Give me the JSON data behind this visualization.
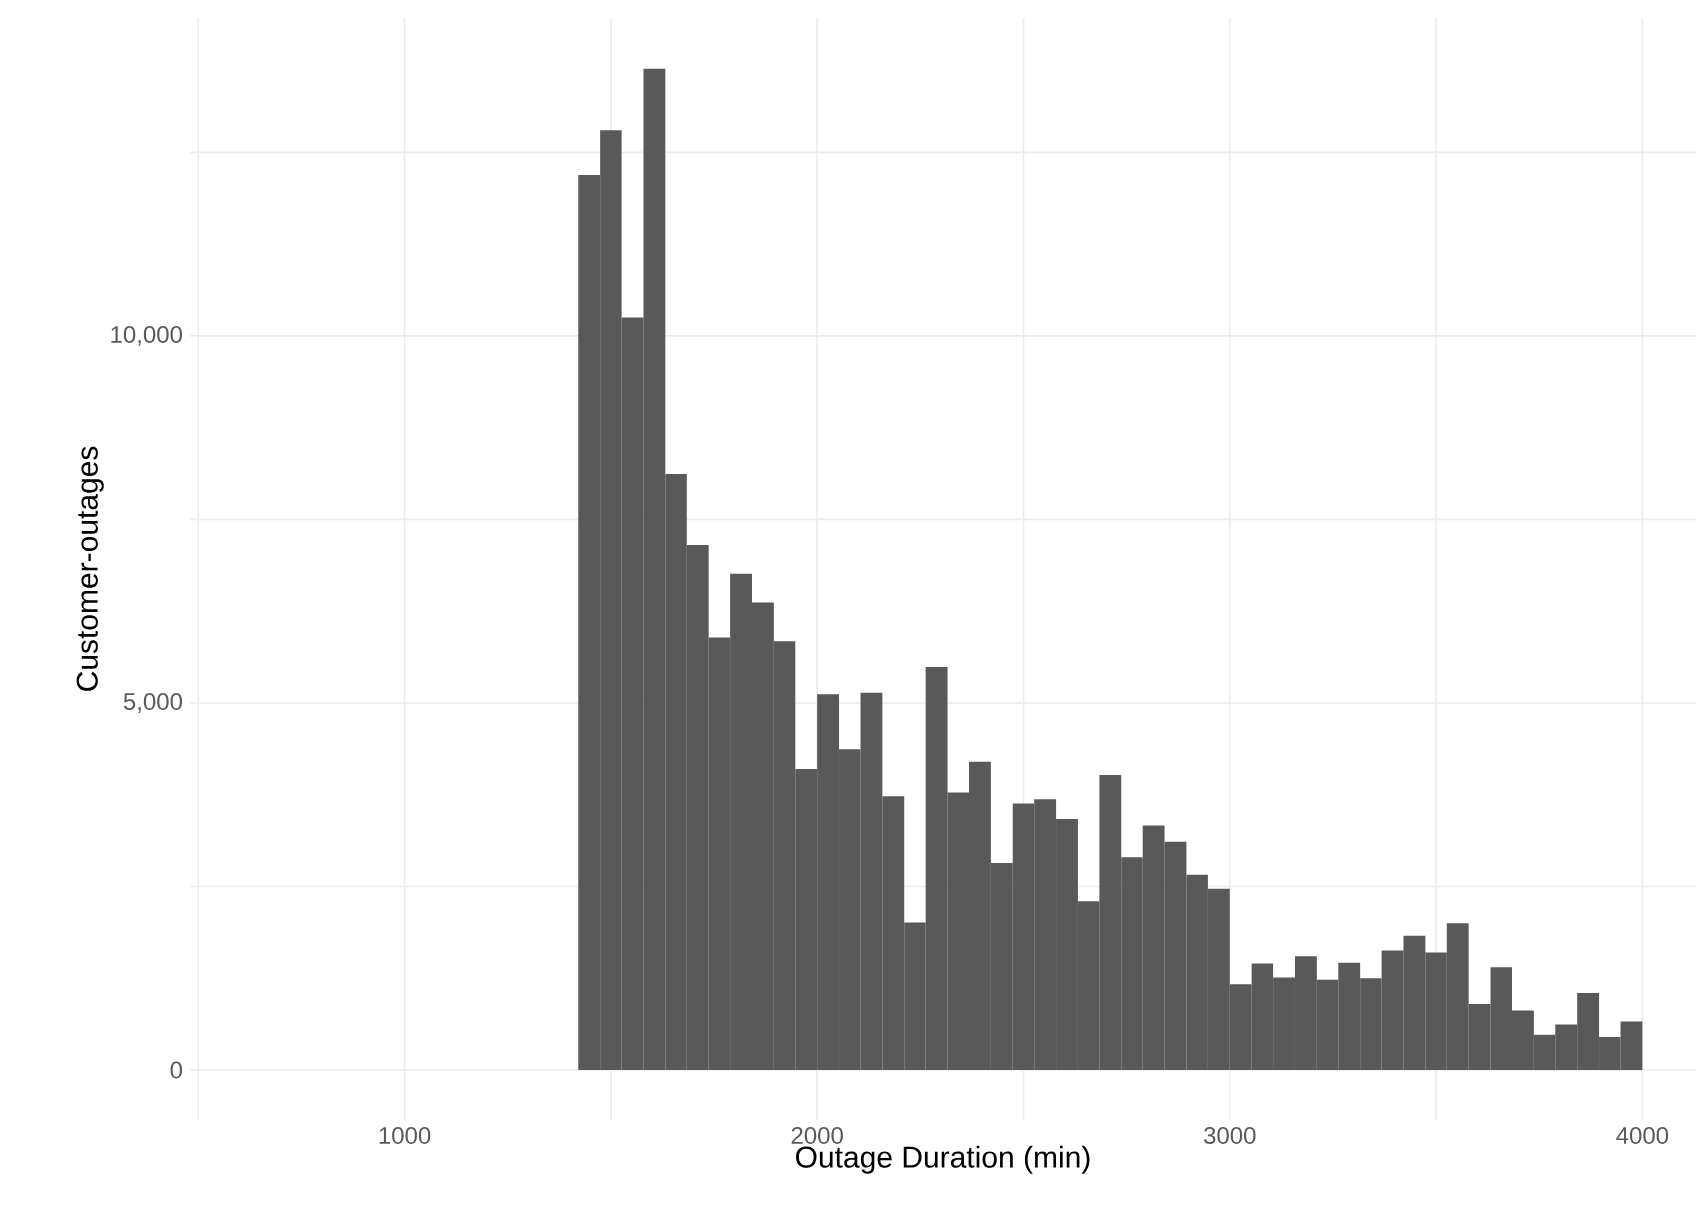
{
  "chart_data": {
    "type": "histogram",
    "xlabel": "Outage Duration (min)",
    "ylabel": "Customer-outages",
    "color": "#595959",
    "grid": true,
    "bins": [
      1421,
      1474,
      1526,
      1579,
      1632,
      1684,
      1737,
      1789,
      1842,
      1895,
      1947,
      2000,
      2053,
      2105,
      2158,
      2211,
      2263,
      2316,
      2368,
      2421,
      2474,
      2526,
      2579,
      2632,
      2684,
      2737,
      2789,
      2842,
      2895,
      2947,
      3000,
      3053,
      3105,
      3158,
      3211,
      3263,
      3316,
      3368,
      3421,
      3474,
      3526,
      3579,
      3632,
      3684,
      3737,
      3789,
      3842,
      3895,
      3947,
      4000
    ],
    "values": [
      12190,
      12800,
      10250,
      13640,
      8120,
      7150,
      5890,
      6760,
      6370,
      5840,
      4100,
      5120,
      4370,
      5140,
      3730,
      2010,
      5490,
      3780,
      4200,
      2820,
      3630,
      3690,
      3420,
      2300,
      4020,
      2900,
      3330,
      3110,
      2660,
      2470,
      1170,
      1450,
      1260,
      1550,
      1230,
      1460,
      1250,
      1630,
      1830,
      1600,
      2000,
      900,
      1400,
      810,
      480,
      620,
      1050,
      450,
      660
    ],
    "xlim": [
      480,
      4130
    ],
    "xticks": [
      {
        "value": 500,
        "label": null
      },
      1000,
      {
        "value": 1500,
        "label": null
      },
      2000,
      {
        "value": 2500,
        "label": null
      },
      3000,
      {
        "value": 3500,
        "label": null
      },
      4000
    ],
    "ylim": [
      -680,
      14330
    ],
    "yticks": [
      0,
      {
        "value": 2500,
        "label": null
      },
      {
        "value": 5000,
        "label": "5,000"
      },
      {
        "value": 7500,
        "label": null
      },
      {
        "value": 10000,
        "label": "10,000"
      },
      {
        "value": 12500,
        "label": null
      }
    ]
  }
}
